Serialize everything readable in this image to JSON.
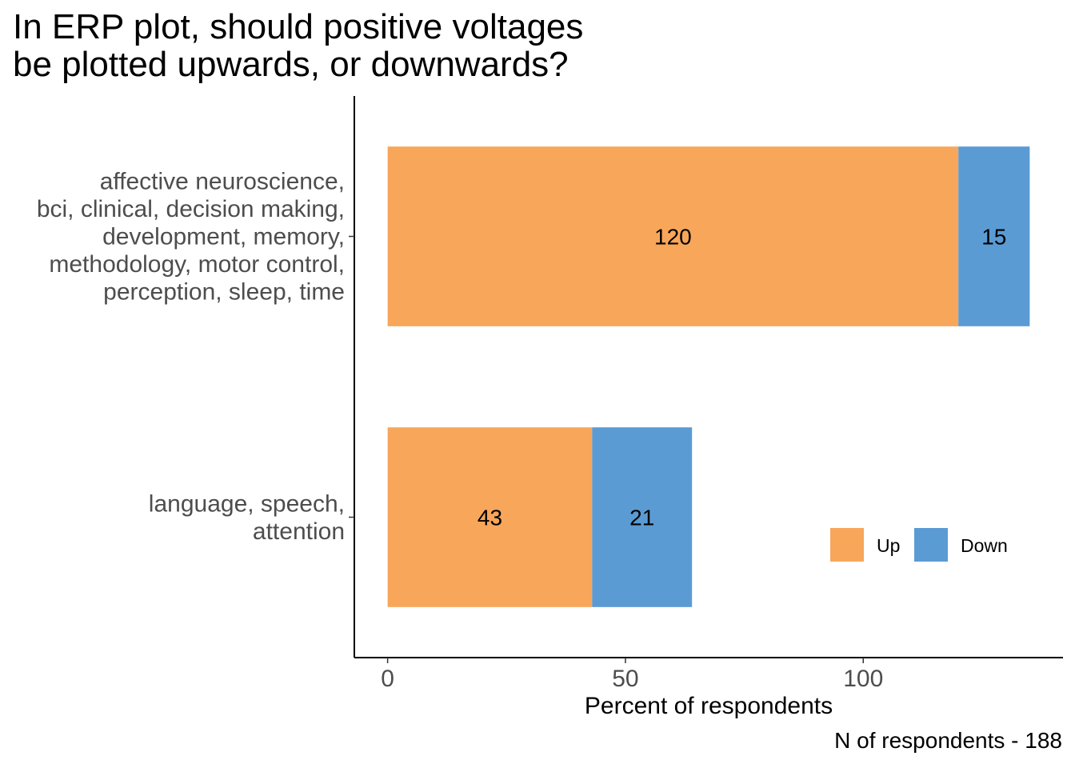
{
  "chart_data": {
    "type": "bar",
    "orientation": "horizontal",
    "stacked": true,
    "title_lines": [
      "In ERP plot, should positive voltages",
      "be plotted upwards, or downwards?"
    ],
    "xlabel": "Percent of respondents",
    "caption": "N of respondents - 188",
    "xlim": [
      -7,
      142
    ],
    "xticks": [
      0,
      50,
      100
    ],
    "xtick_labels": [
      "0",
      "50",
      "100"
    ],
    "categories": [
      {
        "label_lines": [
          "affective neuroscience,",
          "bci, clinical, decision making,",
          "development, memory,",
          "methodology, motor control,",
          "perception, sleep, time"
        ]
      },
      {
        "label_lines": [
          "language, speech,",
          "attention"
        ]
      }
    ],
    "series": [
      {
        "name": "Up",
        "color": "#F8A65A",
        "values": [
          120,
          43
        ]
      },
      {
        "name": "Down",
        "color": "#5B9BD4",
        "values": [
          15,
          21
        ]
      }
    ],
    "legend_position": "bottom-right",
    "grid": false
  }
}
